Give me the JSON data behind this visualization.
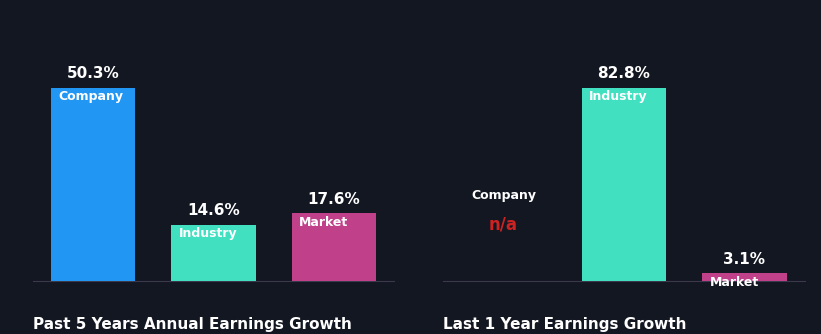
{
  "background_color": "#131722",
  "left_chart": {
    "title": "Past 5 Years Annual Earnings Growth",
    "bars": [
      {
        "label": "Company",
        "value": 50.3,
        "color": "#2196f3"
      },
      {
        "label": "Industry",
        "value": 14.6,
        "color": "#40e0c0"
      },
      {
        "label": "Market",
        "value": 17.6,
        "color": "#c0408a"
      }
    ]
  },
  "right_chart": {
    "title": "Last 1 Year Earnings Growth",
    "bars": [
      {
        "label": "Company",
        "value": null,
        "color": "#2196f3",
        "na": true
      },
      {
        "label": "Industry",
        "value": 82.8,
        "color": "#40e0c0"
      },
      {
        "label": "Market",
        "value": 3.1,
        "color": "#c0408a"
      }
    ]
  },
  "value_color": "#ffffff",
  "na_color": "#cc2222",
  "label_color": "#ffffff",
  "title_color": "#ffffff",
  "title_fontsize": 11,
  "value_fontsize": 11,
  "label_fontsize": 9,
  "bar_width": 0.7
}
